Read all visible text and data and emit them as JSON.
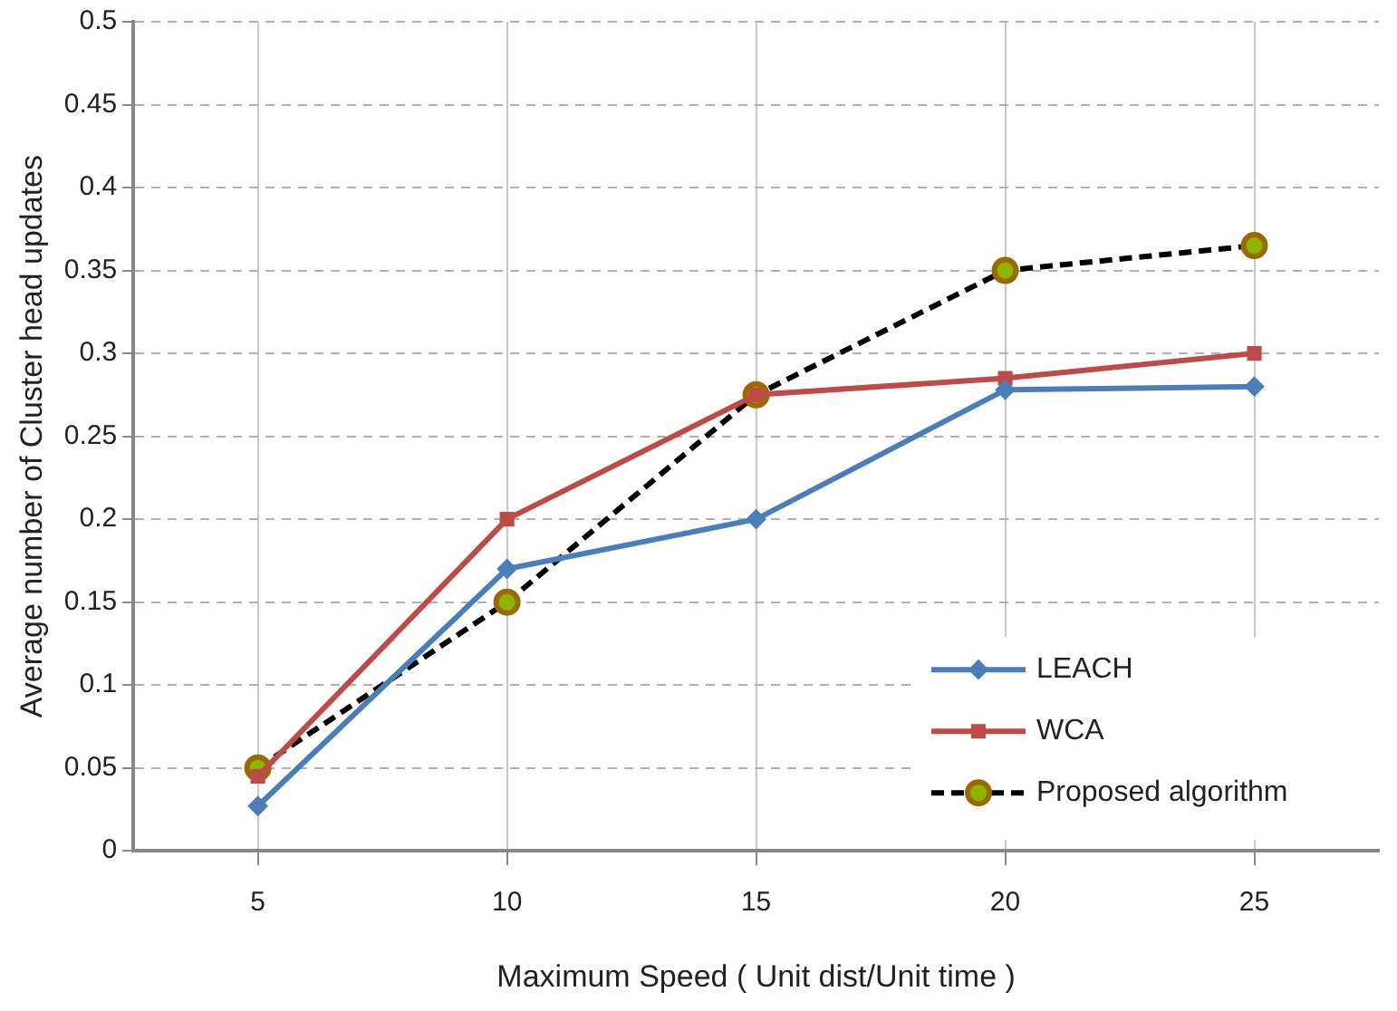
{
  "chart_data": {
    "type": "line",
    "xlabel": "Maximum Speed ( Unit dist/Unit time )",
    "ylabel": "Average number of Cluster head updates",
    "categories": [
      "5",
      "10",
      "15",
      "20",
      "25"
    ],
    "ylim": [
      0,
      0.5
    ],
    "yticks": [
      0,
      0.05,
      0.1,
      0.15,
      0.2,
      0.25,
      0.3,
      0.35,
      0.4,
      0.45,
      0.5
    ],
    "grid": true,
    "legend": "bottom right",
    "series": [
      {
        "name": "LEACH",
        "color": "#4a7ebb",
        "values": [
          0.027,
          0.17,
          0.2,
          0.278,
          0.28
        ],
        "marker": "diamond",
        "line_style": "solid"
      },
      {
        "name": "WCA",
        "color": "#be4b48",
        "values": [
          0.045,
          0.2,
          0.275,
          0.285,
          0.3
        ],
        "marker": "square",
        "line_style": "solid"
      },
      {
        "name": "Proposed algorithm",
        "color": "#000000",
        "values": [
          0.05,
          0.15,
          0.275,
          0.35,
          0.365
        ],
        "marker": "circle",
        "line_style": "dashed"
      }
    ]
  }
}
